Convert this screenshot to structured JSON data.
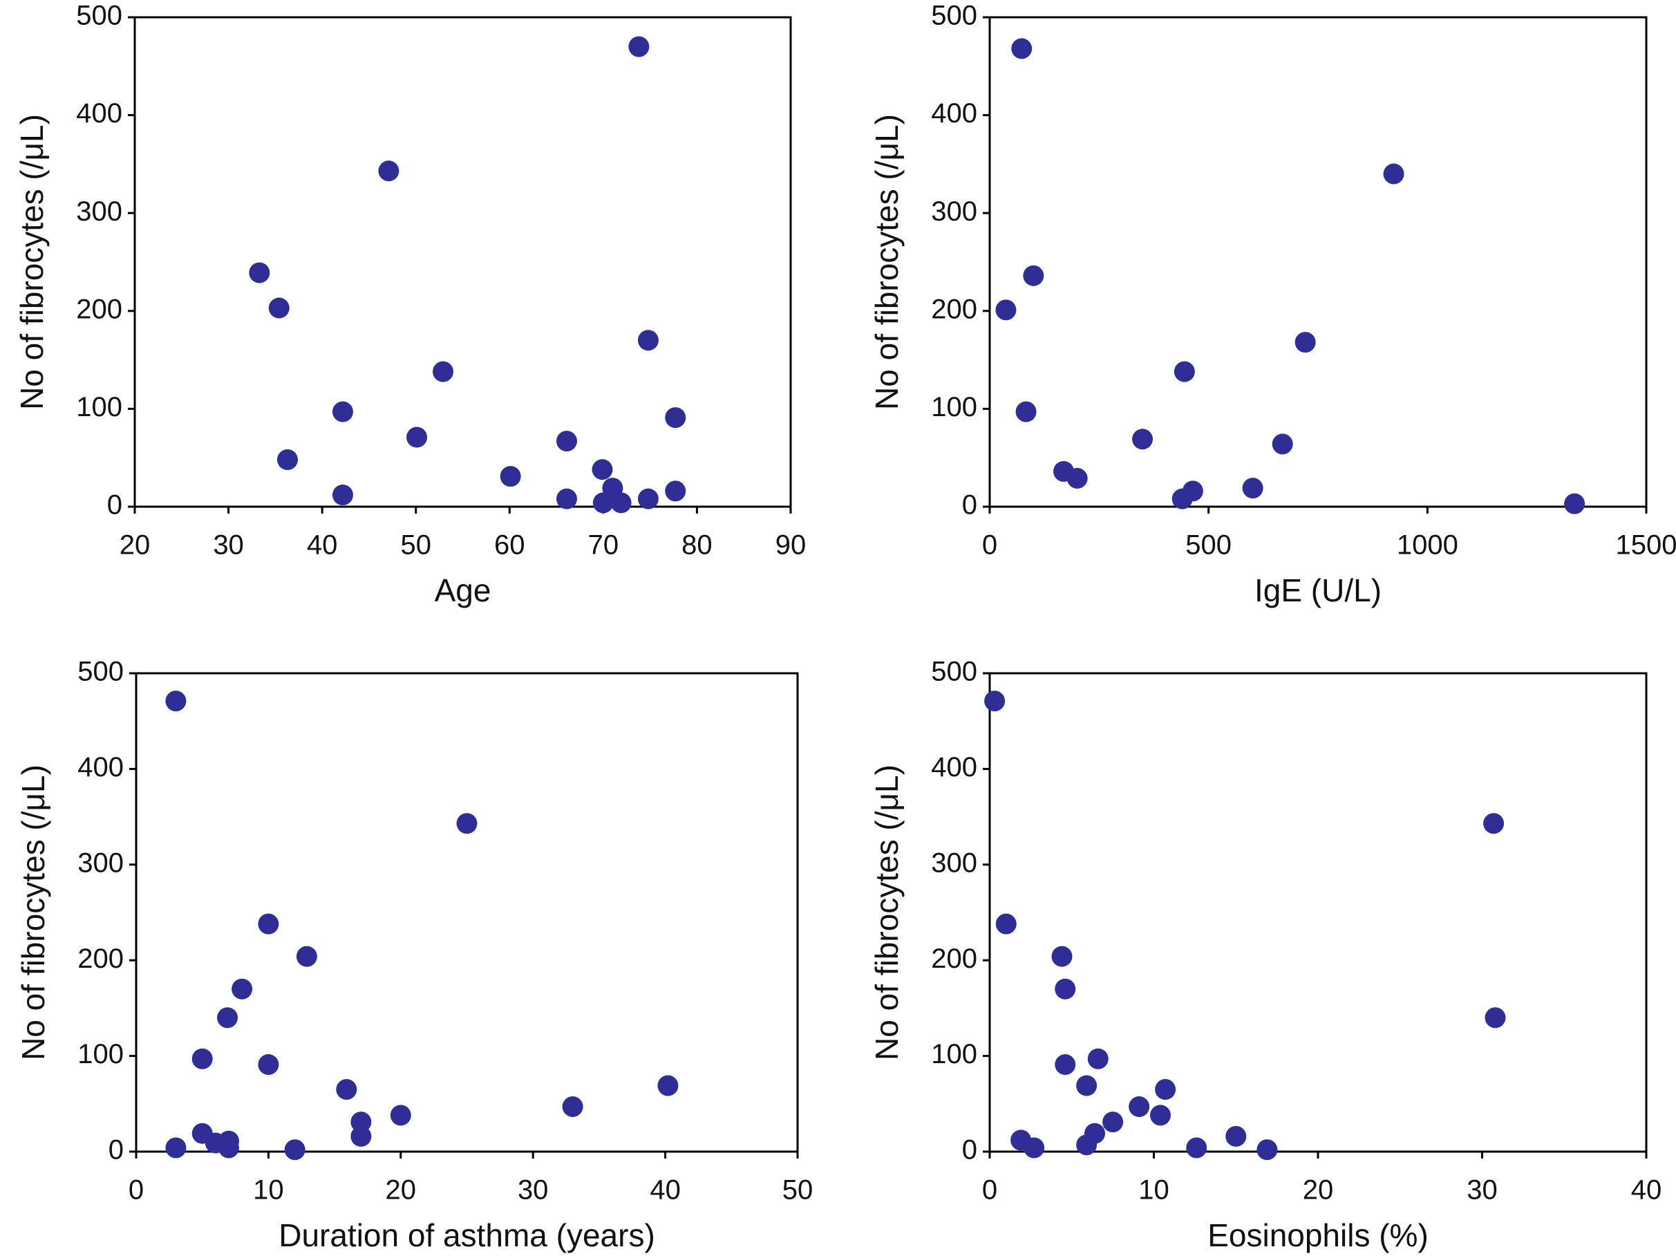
{
  "chart_data": [
    {
      "type": "scatter",
      "xlabel": "Age",
      "ylabel": "No of fibrocytes (/μL)",
      "color": "#2e2e96",
      "xlim": [
        20,
        90
      ],
      "ylim": [
        0,
        500
      ],
      "xticks": [
        20,
        30,
        40,
        50,
        60,
        70,
        80,
        90
      ],
      "yticks": [
        0,
        100,
        200,
        300,
        400,
        500
      ],
      "x": [
        73.8,
        47.1,
        33.3,
        35.4,
        52.9,
        74.8,
        77.7,
        42.2,
        50.1,
        36.3,
        66.1,
        60.1,
        69.9,
        42.2,
        66.1,
        70,
        71,
        71.9,
        74.8,
        77.7
      ],
      "values": [
        470,
        343,
        239,
        203,
        138,
        170,
        91,
        97,
        71,
        48,
        67,
        31,
        38,
        12,
        8,
        4,
        19,
        4,
        8,
        16
      ]
    },
    {
      "type": "scatter",
      "xlabel": "IgE (U/L)",
      "ylabel": "No of fibrocytes (/μL)",
      "color": "#2e2e96",
      "xlim": [
        0,
        1500
      ],
      "ylim": [
        0,
        500
      ],
      "xticks": [
        0,
        500,
        1000,
        1500
      ],
      "yticks": [
        0,
        100,
        200,
        300,
        400,
        500
      ],
      "x": [
        73,
        923,
        100,
        37,
        721,
        445,
        83,
        349,
        669,
        169,
        200,
        464,
        440,
        601,
        1336
      ],
      "values": [
        468,
        340,
        236,
        201,
        168,
        138,
        97,
        69,
        64,
        36,
        29,
        16,
        8,
        19,
        3
      ]
    },
    {
      "type": "scatter",
      "xlabel": "Duration of asthma (years)",
      "ylabel": "No of fibrocytes (/μL)",
      "color": "#2e2e96",
      "xlim": [
        0,
        50
      ],
      "ylim": [
        0,
        500
      ],
      "xticks": [
        0,
        10,
        20,
        30,
        40,
        50
      ],
      "yticks": [
        0,
        100,
        200,
        300,
        400,
        500
      ],
      "x": [
        3,
        25,
        10,
        12.9,
        8,
        6.9,
        5,
        10,
        40.2,
        15.9,
        33,
        20,
        17,
        17,
        5,
        3,
        6,
        7,
        7,
        12
      ],
      "values": [
        471,
        343,
        238,
        204,
        170,
        140,
        97,
        91,
        69,
        65,
        47,
        38,
        31,
        16,
        19,
        4,
        9,
        11,
        4,
        2
      ]
    },
    {
      "type": "scatter",
      "xlabel": "Eosinophils (%)",
      "ylabel": "No of fibrocytes (/μL)",
      "color": "#2e2e96",
      "xlim": [
        0,
        40
      ],
      "ylim": [
        0,
        500
      ],
      "xticks": [
        0,
        10,
        20,
        30,
        40
      ],
      "yticks": [
        0,
        100,
        200,
        300,
        400,
        500
      ],
      "x": [
        0.3,
        30.7,
        1,
        4.4,
        4.6,
        30.8,
        6.6,
        4.6,
        5.9,
        10.7,
        9.1,
        10.4,
        7.5,
        6.4,
        15,
        1.9,
        2.7,
        5.9,
        12.6,
        16.9
      ],
      "values": [
        471,
        343,
        238,
        204,
        170,
        140,
        97,
        91,
        69,
        65,
        47,
        38,
        31,
        19,
        16,
        12,
        4,
        7,
        4,
        2
      ]
    }
  ]
}
